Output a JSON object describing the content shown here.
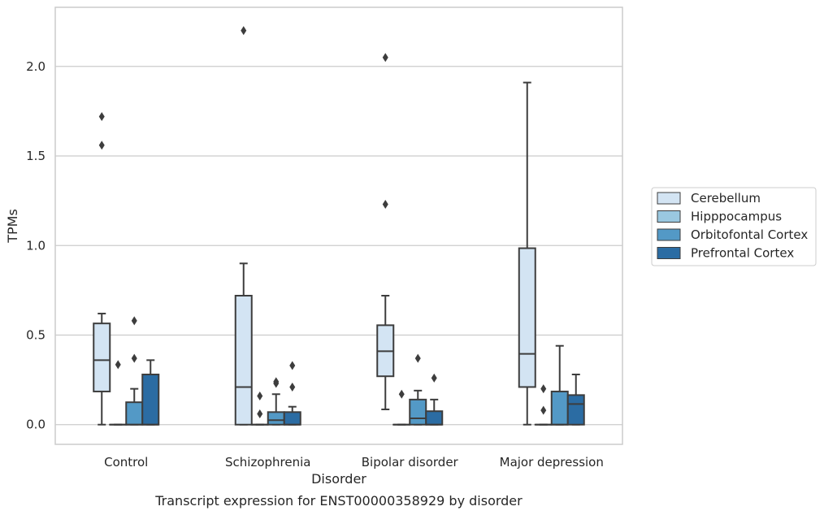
{
  "chart_data": {
    "type": "box",
    "title": "",
    "caption": "Transcript expression for ENST00000358929 by disorder",
    "xlabel": "Disorder",
    "ylabel": "TPMs",
    "ylim": [
      -0.11,
      2.33
    ],
    "yticks": [
      0.0,
      0.5,
      1.0,
      1.5,
      2.0
    ],
    "ytick_labels": [
      "0.0",
      "0.5",
      "1.0",
      "1.5",
      "2.0"
    ],
    "grid": "horizontal",
    "legend_position": "right",
    "categories": [
      "Control",
      "Schizophrenia",
      "Bipolar disorder",
      "Major depression"
    ],
    "series": [
      {
        "name": "Cerebellum",
        "color": "#d3e4f3",
        "boxes": [
          {
            "whislo": 0.0,
            "q1": 0.185,
            "med": 0.36,
            "q3": 0.565,
            "whishi": 0.62,
            "fliers": [
              1.56,
              1.72
            ]
          },
          {
            "whislo": 0.0,
            "q1": 0.0,
            "med": 0.21,
            "q3": 0.72,
            "whishi": 0.9,
            "fliers": [
              2.2
            ]
          },
          {
            "whislo": 0.085,
            "q1": 0.27,
            "med": 0.41,
            "q3": 0.555,
            "whishi": 0.72,
            "fliers": [
              1.23,
              2.05
            ]
          },
          {
            "whislo": 0.0,
            "q1": 0.21,
            "med": 0.395,
            "q3": 0.985,
            "whishi": 1.91,
            "fliers": []
          }
        ]
      },
      {
        "name": "Hipppocampus",
        "color": "#9ac8e0",
        "boxes": [
          {
            "whislo": 0.0,
            "q1": 0.0,
            "med": 0.0,
            "q3": 0.0,
            "whishi": 0.0,
            "fliers": [
              0.335
            ]
          },
          {
            "whislo": 0.0,
            "q1": 0.0,
            "med": 0.0,
            "q3": 0.0,
            "whishi": 0.0,
            "fliers": [
              0.06,
              0.16
            ]
          },
          {
            "whislo": 0.0,
            "q1": 0.0,
            "med": 0.0,
            "q3": 0.0,
            "whishi": 0.0,
            "fliers": [
              0.17
            ]
          },
          {
            "whislo": 0.0,
            "q1": 0.0,
            "med": 0.0,
            "q3": 0.0,
            "whishi": 0.0,
            "fliers": [
              0.08,
              0.2
            ]
          }
        ]
      },
      {
        "name": "Orbitofontal Cortex",
        "color": "#5399c6",
        "boxes": [
          {
            "whislo": 0.0,
            "q1": 0.0,
            "med": 0.0,
            "q3": 0.125,
            "whishi": 0.2,
            "fliers": [
              0.37,
              0.58
            ]
          },
          {
            "whislo": 0.0,
            "q1": 0.0,
            "med": 0.025,
            "q3": 0.07,
            "whishi": 0.17,
            "fliers": [
              0.23,
              0.24
            ]
          },
          {
            "whislo": 0.0,
            "q1": 0.0,
            "med": 0.035,
            "q3": 0.14,
            "whishi": 0.19,
            "fliers": [
              0.37
            ]
          },
          {
            "whislo": 0.0,
            "q1": 0.0,
            "med": 0.0,
            "q3": 0.185,
            "whishi": 0.44,
            "fliers": []
          }
        ]
      },
      {
        "name": "Prefrontal Cortex",
        "color": "#2b6ca3",
        "boxes": [
          {
            "whislo": 0.0,
            "q1": 0.0,
            "med": 0.0,
            "q3": 0.28,
            "whishi": 0.36,
            "fliers": []
          },
          {
            "whislo": 0.0,
            "q1": 0.0,
            "med": 0.0,
            "q3": 0.07,
            "whishi": 0.1,
            "fliers": [
              0.21,
              0.33
            ]
          },
          {
            "whislo": 0.0,
            "q1": 0.0,
            "med": 0.0,
            "q3": 0.075,
            "whishi": 0.14,
            "fliers": [
              0.26
            ]
          },
          {
            "whislo": 0.0,
            "q1": 0.0,
            "med": 0.115,
            "q3": 0.165,
            "whishi": 0.28,
            "fliers": []
          }
        ]
      }
    ]
  }
}
